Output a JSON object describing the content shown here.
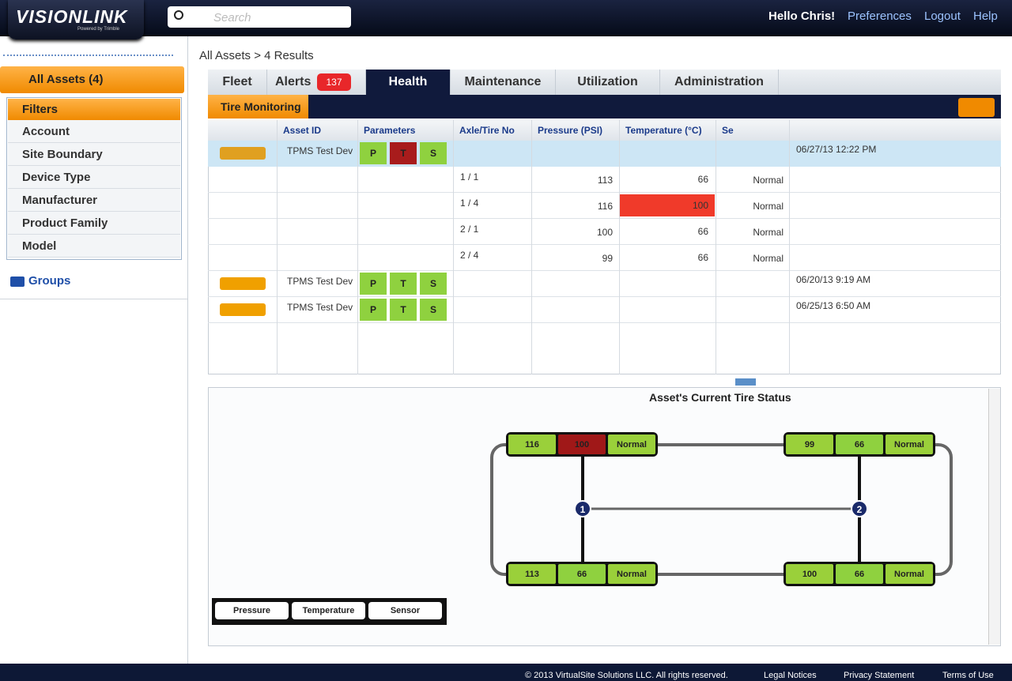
{
  "header": {
    "logo": "VISIONLINK",
    "logo_sub": "Powered by Trimble",
    "search_placeholder": "Search",
    "greeting": "Hello Chris!",
    "links": [
      "Preferences",
      "Logout",
      "Help"
    ]
  },
  "sidebar": {
    "all_assets": "All Assets (4)",
    "filters_title": "Filters",
    "filters": [
      "Account",
      "Site Boundary",
      "Device Type",
      "Manufacturer",
      "Product Family",
      "Model"
    ],
    "groups": "Groups"
  },
  "breadcrumb": "All Assets > 4 Results",
  "tabs": [
    "Fleet",
    "Alerts",
    "Health",
    "Maintenance",
    "Utilization",
    "Administration"
  ],
  "alerts_badge": 137,
  "subheader": "Tire Monitoring",
  "table": {
    "columns": [
      "Asset ID",
      "Parameters",
      "Axle/Tire No",
      "Pressure (PSI)",
      "Temperature (°C)",
      "Se"
    ],
    "assets": [
      {
        "id": "TPMS Test Dev",
        "params": [
          "P",
          "T",
          "S"
        ],
        "param_colors": [
          "#8fd13f",
          "#a81c1c",
          "#8fd13f"
        ],
        "date": "06/27/13 12:22 PM",
        "tires": [
          {
            "axle": "1 / 1",
            "pressure": 113,
            "temperature": 66,
            "sensor": "Normal",
            "temperature_color": "#ffffff"
          },
          {
            "axle": "1 / 4",
            "pressure": 116,
            "temperature": 100,
            "sensor": "Normal",
            "temperature_color": "#f03a2a"
          },
          {
            "axle": "2 / 1",
            "pressure": 100,
            "temperature": 66,
            "sensor": "Normal",
            "temperature_color": "#ffffff"
          },
          {
            "axle": "2 / 4",
            "pressure": 99,
            "temperature": 66,
            "sensor": "Normal",
            "temperature_color": "#ffffff"
          }
        ]
      },
      {
        "id": "TPMS Test Dev",
        "params": [
          "P",
          "T",
          "S"
        ],
        "param_colors": [
          "#8fd13f",
          "#8fd13f",
          "#8fd13f"
        ],
        "date": "06/20/13 9:19 AM",
        "tires": []
      },
      {
        "id": "TPMS Test Dev",
        "params": [
          "P",
          "T",
          "S"
        ],
        "param_colors": [
          "#8fd13f",
          "#8fd13f",
          "#8fd13f"
        ],
        "date": "06/25/13 6:50 AM",
        "tires": []
      }
    ]
  },
  "panel": {
    "title": "Asset's Current Tire Status",
    "axles": [
      "1",
      "2"
    ],
    "tires": [
      {
        "pressure": 116,
        "temperature": 100,
        "sensor": "Normal",
        "temperature_color": "#a01818"
      },
      {
        "pressure": 99,
        "temperature": 66,
        "sensor": "Normal",
        "temperature_color": "#8fd13f"
      },
      {
        "pressure": 113,
        "temperature": 66,
        "sensor": "Normal",
        "temperature_color": "#8fd13f"
      },
      {
        "pressure": 100,
        "temperature": 66,
        "sensor": "Normal",
        "temperature_color": "#8fd13f"
      }
    ],
    "legend": [
      "Pressure",
      "Temperature",
      "Sensor"
    ]
  },
  "footer": {
    "copyright": "© 2013 VirtualSite Solutions LLC. All rights reserved.",
    "links": [
      "Legal Notices",
      "Privacy Statement",
      "Terms of Use"
    ]
  }
}
